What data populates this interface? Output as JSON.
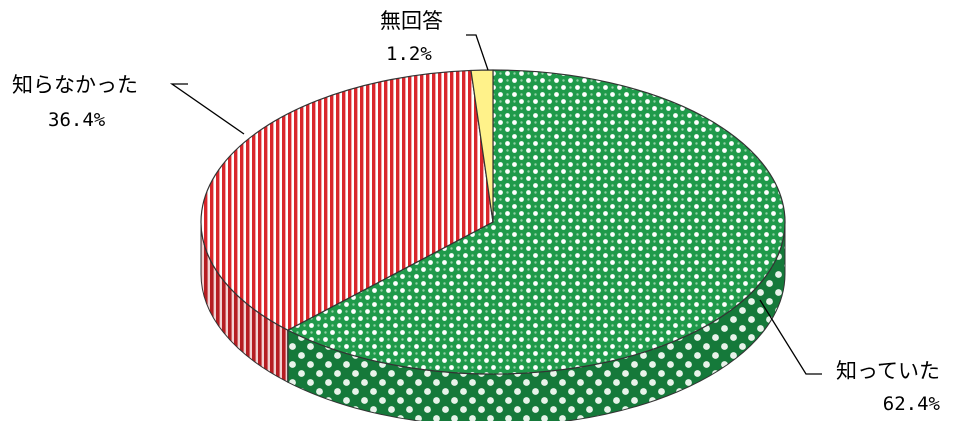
{
  "chart_data": {
    "type": "pie",
    "style": "3d",
    "slices": [
      {
        "label": "知っていた",
        "value": 62.4,
        "value_label": "62.4%",
        "color": "#1f9a4a",
        "pattern": "checker"
      },
      {
        "label": "知らなかった",
        "value": 36.4,
        "value_label": "36.4%",
        "color": "#d9262c",
        "pattern": "stripes"
      },
      {
        "label": "無回答",
        "value": 1.2,
        "value_label": "1.2%",
        "color": "#fff28a",
        "pattern": "solid"
      }
    ]
  }
}
